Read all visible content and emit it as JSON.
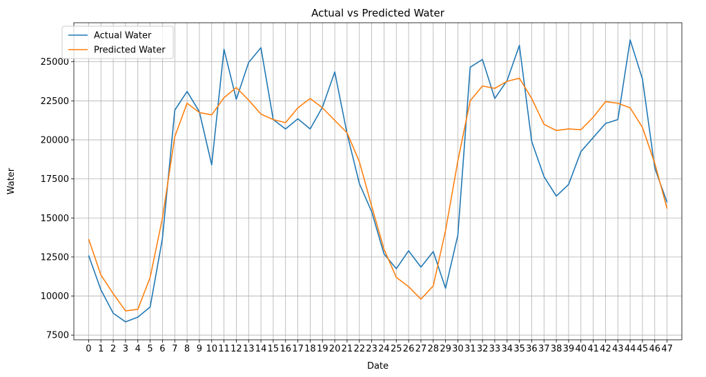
{
  "chart_data": {
    "type": "line",
    "title": "Actual vs Predicted Water",
    "xlabel": "Date",
    "ylabel": "Water",
    "x": [
      0,
      1,
      2,
      3,
      4,
      5,
      6,
      7,
      8,
      9,
      10,
      11,
      12,
      13,
      14,
      15,
      16,
      17,
      18,
      19,
      20,
      21,
      22,
      23,
      24,
      25,
      26,
      27,
      28,
      29,
      30,
      31,
      32,
      33,
      34,
      35,
      36,
      37,
      38,
      39,
      40,
      41,
      42,
      43,
      44,
      45,
      46,
      47
    ],
    "xlim": [
      -1.2,
      48.2
    ],
    "ylim": [
      7200,
      27500
    ],
    "yticks": [
      7500,
      10000,
      12500,
      15000,
      17500,
      20000,
      22500,
      25000
    ],
    "grid": true,
    "legend_position": "top-left",
    "series": [
      {
        "name": "Actual Water",
        "color": "#1f77b4",
        "values": [
          12600,
          10400,
          8900,
          8350,
          8650,
          9300,
          13700,
          21900,
          23100,
          21800,
          18400,
          25800,
          22600,
          24950,
          25900,
          21300,
          20700,
          21350,
          20700,
          22100,
          24350,
          20400,
          17200,
          15400,
          12700,
          11750,
          12900,
          11850,
          12850,
          10500,
          13900,
          24650,
          25150,
          22650,
          23800,
          26050,
          19900,
          17650,
          16400,
          17150,
          19250,
          20150,
          21050,
          21300,
          26400,
          23900,
          18200,
          16000
        ]
      },
      {
        "name": "Predicted Water",
        "color": "#ff7f0e",
        "values": [
          13650,
          11350,
          10150,
          9050,
          9150,
          11200,
          15000,
          20200,
          22350,
          21750,
          21600,
          22700,
          23350,
          22550,
          21650,
          21300,
          21100,
          22050,
          22650,
          22050,
          21250,
          20450,
          18600,
          15750,
          13000,
          11200,
          10600,
          9800,
          10650,
          14200,
          18650,
          22500,
          23450,
          23300,
          23750,
          23950,
          22650,
          21000,
          20600,
          20700,
          20650,
          21450,
          22450,
          22350,
          22050,
          20800,
          18500,
          15600
        ]
      }
    ]
  }
}
